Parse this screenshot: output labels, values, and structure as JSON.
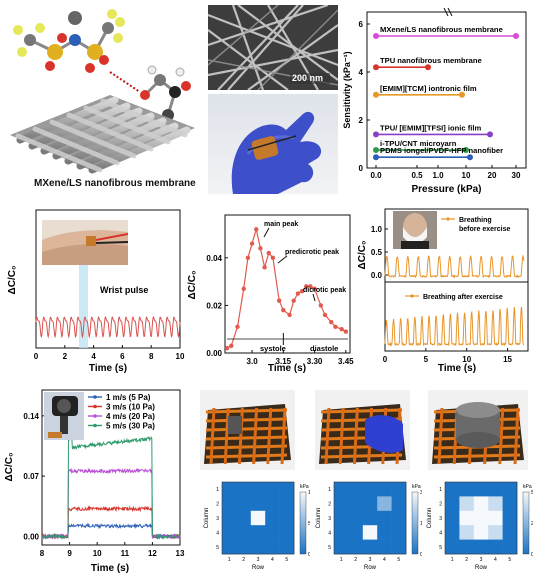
{
  "figure": {
    "membrane_caption": "MXene/LS nanofibrous membrane",
    "sem_scale": "200 nm"
  },
  "colors": {
    "pulse": "#d9534f",
    "orange": "#e8962a",
    "blue": "#2c5fb8",
    "green": "#2e9b6a",
    "purple": "#c14fd6",
    "red": "#d9342b",
    "heat_bg": "#1a73c4"
  },
  "chart_data": [
    {
      "id": "sensitivity",
      "type": "scatter",
      "xlabel": "Pressure (kPa)",
      "ylabel": "Sensitivity (kPa⁻¹)",
      "xticks": [
        "0.0",
        "0.5",
        "1.0",
        "10",
        "20",
        "30"
      ],
      "yticks": [
        "0",
        "2",
        "4",
        "6"
      ],
      "ylim": [
        0,
        6.5
      ],
      "series": [
        {
          "name": "MXene/LS nanofibrous membrane",
          "color": "#d94ad6",
          "values": [
            5.5,
            5.5
          ]
        },
        {
          "name": "TPU nanofibrous membrane",
          "color": "#d9342b",
          "values": [
            4.2,
            4.2
          ]
        },
        {
          "name": "[EMIM][TCM] iontronic film",
          "color": "#e8962a",
          "values": [
            3.05,
            3.05
          ]
        },
        {
          "name": "TPU/ [EMIM][TFSI] ionic film",
          "color": "#8a3fc9",
          "values": [
            1.4,
            1.4
          ]
        },
        {
          "name": "i-TPU/CNT microyarn",
          "color": "#2e9b4a",
          "values": [
            0.75,
            0.75
          ]
        },
        {
          "name": "PDMS iongel/PVDF-HFP nanofiber",
          "color": "#2c5fb8",
          "values": [
            0.45,
            0.45
          ]
        }
      ]
    },
    {
      "id": "wrist",
      "type": "line",
      "xlabel": "Time (s)",
      "ylabel": "ΔC/C₀",
      "xticks": [
        "0",
        "2",
        "4",
        "6",
        "8",
        "10"
      ],
      "xlim": [
        0,
        10
      ],
      "annotation": "Wrist pulse"
    },
    {
      "id": "peaks",
      "type": "line",
      "xlabel": "Time (s)",
      "ylabel": "ΔC/C₀",
      "xticks": [
        "3.0",
        "3.15",
        "3.30",
        "3.45"
      ],
      "yticks": [
        "0.00",
        "0.02",
        "0.04"
      ],
      "xlim": [
        2.87,
        3.47
      ],
      "ylim": [
        0,
        0.058
      ],
      "x": [
        2.88,
        2.9,
        2.93,
        2.96,
        2.98,
        3.0,
        3.02,
        3.04,
        3.06,
        3.08,
        3.1,
        3.13,
        3.15,
        3.18,
        3.2,
        3.22,
        3.24,
        3.26,
        3.28,
        3.3,
        3.33,
        3.35,
        3.38,
        3.4,
        3.43,
        3.45
      ],
      "y": [
        0.002,
        0.003,
        0.011,
        0.027,
        0.04,
        0.046,
        0.052,
        0.044,
        0.036,
        0.042,
        0.04,
        0.022,
        0.018,
        0.016,
        0.022,
        0.025,
        0.026,
        0.028,
        0.028,
        0.027,
        0.02,
        0.016,
        0.013,
        0.011,
        0.01,
        0.009
      ],
      "annotations": [
        "main peak",
        "predicrotic peak",
        "dicrotic peak",
        "systole",
        "diastole"
      ]
    },
    {
      "id": "breathing",
      "type": "line",
      "xlabel": "Time (s)",
      "ylabel": "ΔC/C₀",
      "xticks": [
        "0",
        "5",
        "10",
        "15"
      ],
      "yticks": [
        "0.0",
        "0.5",
        "1.0"
      ],
      "legend_top": "Breathing before exercise",
      "legend_bottom": "Breathing after exercise"
    },
    {
      "id": "wind",
      "type": "line",
      "xlabel": "Time (s)",
      "ylabel": "ΔC/C₀",
      "xticks": [
        "8",
        "9",
        "10",
        "11",
        "12",
        "13"
      ],
      "yticks": [
        "0.00",
        "0.07",
        "0.14"
      ],
      "xlim": [
        8,
        13
      ],
      "ylim": [
        -0.01,
        0.17
      ],
      "series": [
        {
          "name": "1 m/s (5 Pa)",
          "color": "#2c5fb8",
          "level": 0.012
        },
        {
          "name": "3 m/s (10 Pa)",
          "color": "#d9342b",
          "level": 0.032
        },
        {
          "name": "4 m/s (20 Pa)",
          "color": "#b94fd6",
          "level": 0.076
        },
        {
          "name": "5 m/s (30 Pa)",
          "color": "#2e9b6a",
          "level": 0.103
        }
      ]
    },
    {
      "id": "map1",
      "type": "heatmap",
      "xlabel": "Row",
      "ylabel": "Column",
      "ticks": [
        "1",
        "2",
        "3",
        "4",
        "5"
      ],
      "cbar_label": "kPa",
      "cbar_ticks": [
        "0",
        "5",
        "10"
      ],
      "values": [
        [
          0,
          0,
          0,
          0,
          0
        ],
        [
          0,
          0,
          0,
          0,
          0
        ],
        [
          0,
          0,
          10,
          0,
          0
        ],
        [
          0,
          0,
          0,
          0,
          0
        ],
        [
          0,
          0,
          0,
          0,
          0
        ]
      ]
    },
    {
      "id": "map2",
      "type": "heatmap",
      "xlabel": "Row",
      "ylabel": "Column",
      "ticks": [
        "1",
        "2",
        "3",
        "4",
        "5"
      ],
      "cbar_label": "kPa",
      "cbar_ticks": [
        "0",
        "15",
        "30"
      ],
      "values": [
        [
          0,
          0,
          0,
          0,
          0
        ],
        [
          0,
          0,
          0,
          15,
          0
        ],
        [
          0,
          0,
          0,
          0,
          0
        ],
        [
          0,
          0,
          30,
          0,
          0
        ],
        [
          0,
          0,
          0,
          0,
          0
        ]
      ]
    },
    {
      "id": "map3",
      "type": "heatmap",
      "xlabel": "Row",
      "ylabel": "Column",
      "ticks": [
        "1",
        "2",
        "3",
        "4",
        "5"
      ],
      "cbar_label": "kPa",
      "cbar_ticks": [
        "0",
        "25",
        "50"
      ],
      "values": [
        [
          0,
          0,
          0,
          0,
          0
        ],
        [
          0,
          40,
          50,
          40,
          0
        ],
        [
          0,
          50,
          50,
          50,
          0
        ],
        [
          0,
          40,
          50,
          40,
          0
        ],
        [
          0,
          0,
          0,
          0,
          0
        ]
      ]
    }
  ]
}
